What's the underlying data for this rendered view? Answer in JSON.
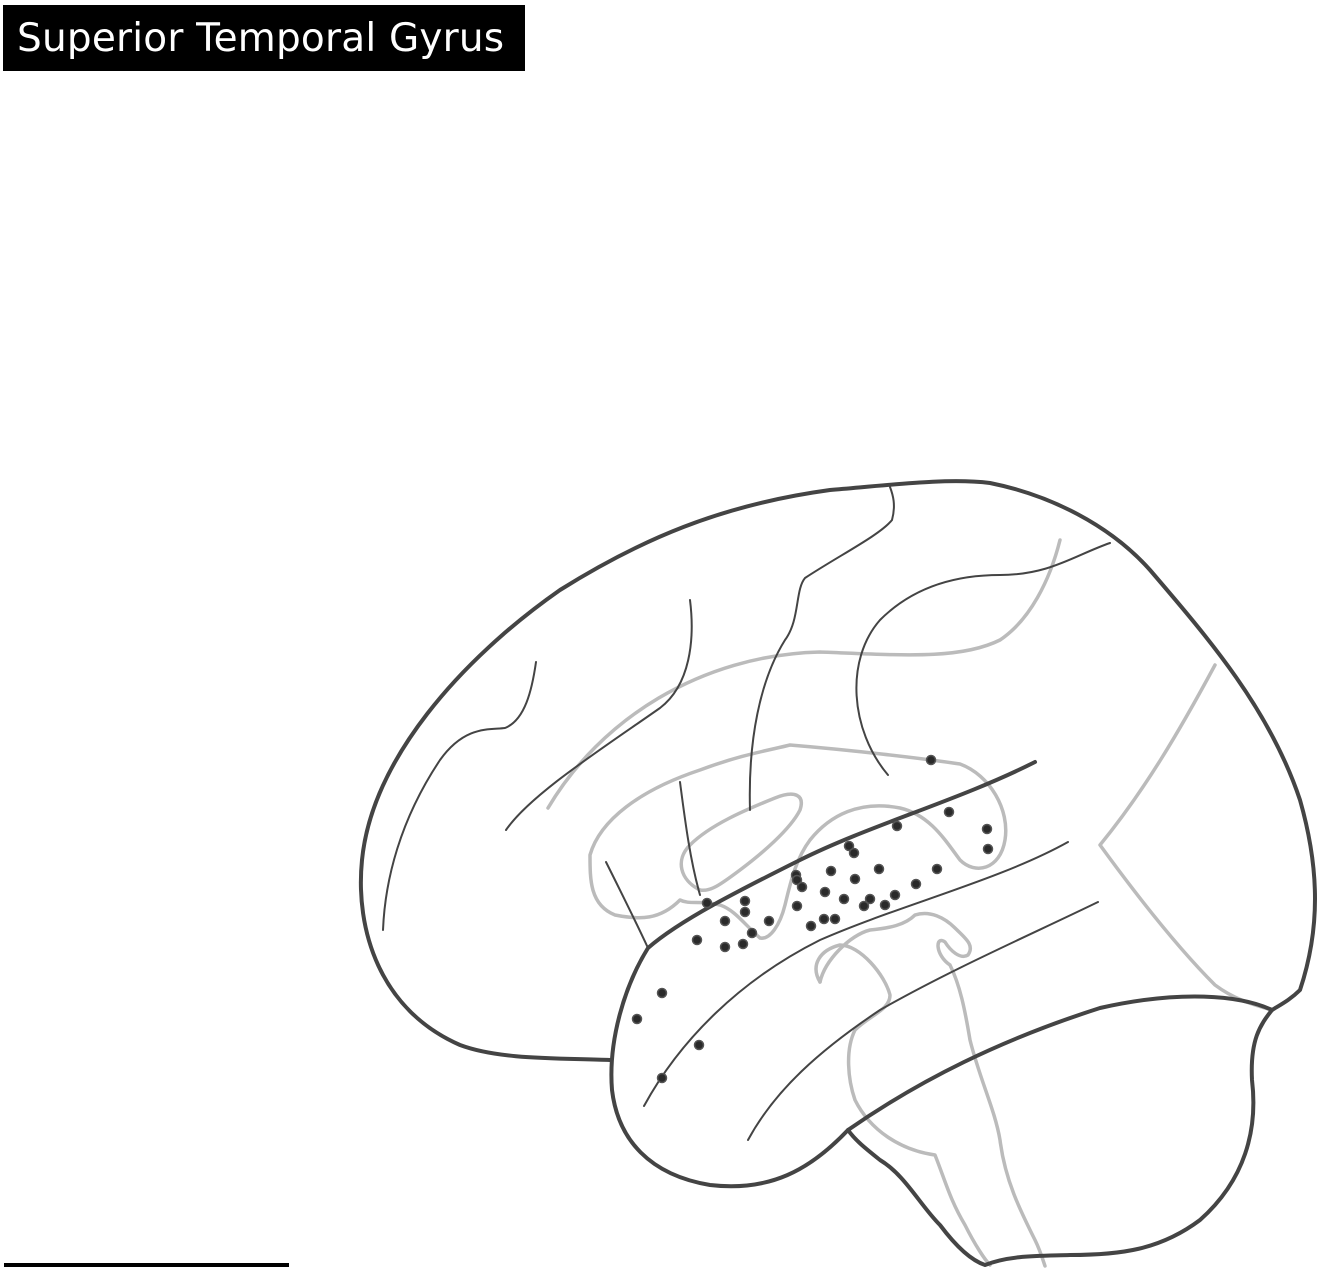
{
  "title": "Superior Temporal Gyrus",
  "colors": {
    "title_background": "#000000",
    "title_text": "#ffffff",
    "outline": "#444444",
    "hidden_structure": "#bbbbbb",
    "marker": "#2a2a2a"
  },
  "markers": {
    "shape": "circle",
    "count": 38
  }
}
